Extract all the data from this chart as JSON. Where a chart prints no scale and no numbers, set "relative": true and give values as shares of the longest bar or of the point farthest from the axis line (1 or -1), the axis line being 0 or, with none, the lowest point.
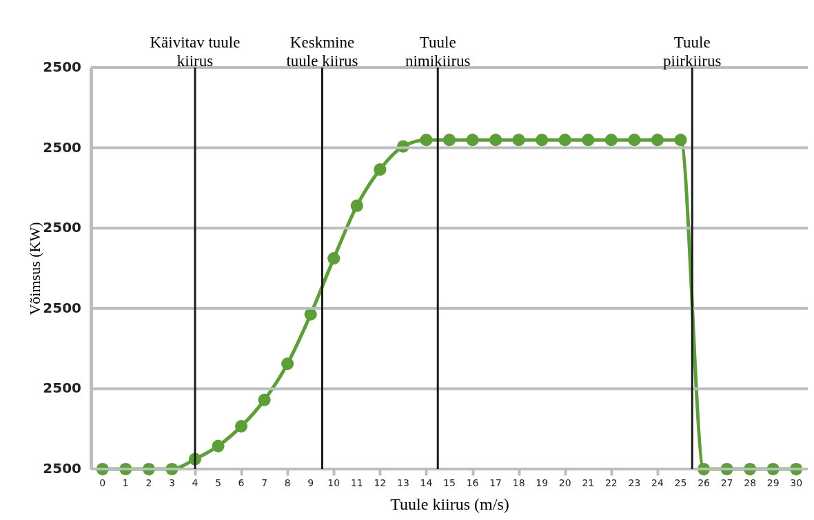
{
  "chart_data": {
    "type": "line",
    "xlabel": "Tuule kiirus (m/s)",
    "ylabel": "Võimsus  (KW)",
    "relative": true,
    "x": [
      0,
      1,
      2,
      3,
      4,
      5,
      6,
      7,
      8,
      9,
      10,
      11,
      12,
      13,
      14,
      15,
      16,
      17,
      18,
      19,
      20,
      21,
      22,
      23,
      24,
      25,
      26,
      27,
      28,
      29,
      30
    ],
    "series": [
      {
        "color": "#5c9f38",
        "values": [
          0,
          0,
          0,
          0,
          0.03,
          0.07,
          0.13,
          0.21,
          0.32,
          0.47,
          0.64,
          0.8,
          0.91,
          0.98,
          1,
          1,
          1,
          1,
          1,
          1,
          1,
          1,
          1,
          1,
          1,
          1,
          0,
          0,
          0,
          0,
          0
        ]
      }
    ],
    "xlim": [
      -0.5,
      30.5
    ],
    "xticks": [
      0,
      1,
      2,
      3,
      4,
      5,
      6,
      7,
      8,
      9,
      10,
      11,
      12,
      13,
      14,
      15,
      16,
      17,
      18,
      19,
      20,
      21,
      22,
      23,
      24,
      25,
      26,
      27,
      28,
      29,
      30
    ],
    "annotations": [
      "2500",
      "2500",
      "2500",
      "2500",
      "2500",
      "2500"
    ],
    "ref_lines": [
      {
        "axis": "x",
        "value": 4,
        "label": "Käivitav tuule\nkiirus",
        "color": "#1a1a1a"
      },
      {
        "axis": "x",
        "value": 9.5,
        "label": "Keskmine\ntuule kiirus",
        "color": "#1a1a1a"
      },
      {
        "axis": "x",
        "value": 14.5,
        "label": "Tuule\nnimikiirus",
        "color": "#1a1a1a"
      },
      {
        "axis": "x",
        "value": 25.5,
        "label": "Tuule\npiirkiirus",
        "color": "#1a1a1a"
      }
    ],
    "grid": "y",
    "marker": "circle",
    "line_style": "solid"
  }
}
